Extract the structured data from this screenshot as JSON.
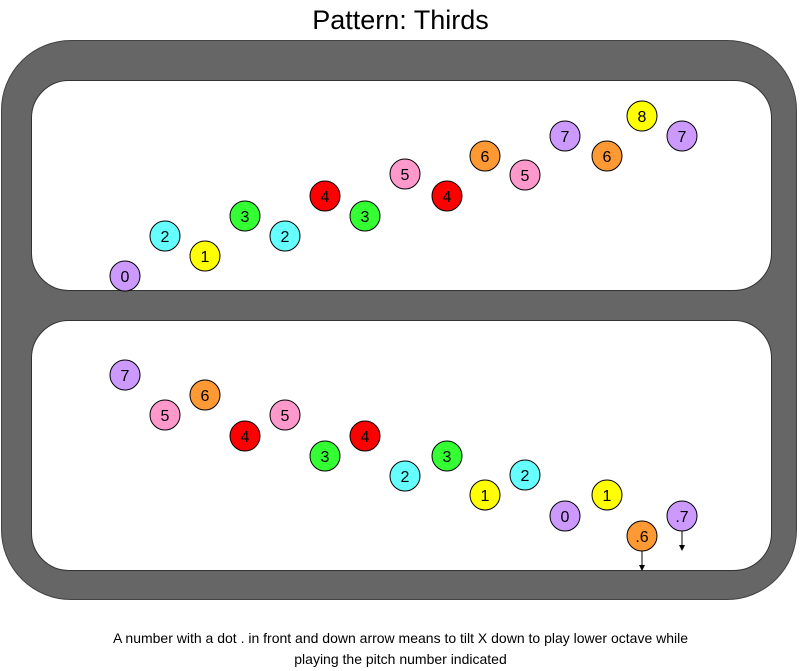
{
  "title": "Pattern: Thirds",
  "legend_text_line1": "A number with a dot . in front and down arrow means to tilt X down to play lower octave while",
  "legend_text_line2": "playing the pitch number indicated",
  "colors": {
    "purple": "#cc99ff",
    "cyan": "#66ffff",
    "yellow": "#ffff00",
    "green": "#33ff33",
    "red": "#ff0000",
    "pink": "#ff99cc",
    "orange": "#ff9933",
    "frame": "#666666",
    "panel": "#ffffff"
  },
  "ascending_notes": [
    {
      "label": "0",
      "color": "purple"
    },
    {
      "label": "2",
      "color": "cyan"
    },
    {
      "label": "1",
      "color": "yellow"
    },
    {
      "label": "3",
      "color": "green"
    },
    {
      "label": "2",
      "color": "cyan"
    },
    {
      "label": "4",
      "color": "red"
    },
    {
      "label": "3",
      "color": "green"
    },
    {
      "label": "5",
      "color": "pink"
    },
    {
      "label": "4",
      "color": "red"
    },
    {
      "label": "6",
      "color": "orange"
    },
    {
      "label": "5",
      "color": "pink"
    },
    {
      "label": "7",
      "color": "purple"
    },
    {
      "label": "6",
      "color": "orange"
    },
    {
      "label": "8",
      "color": "yellow"
    },
    {
      "label": "7",
      "color": "purple"
    }
  ],
  "descending_notes": [
    {
      "label": "7",
      "color": "purple"
    },
    {
      "label": "5",
      "color": "pink"
    },
    {
      "label": "6",
      "color": "orange"
    },
    {
      "label": "4",
      "color": "red"
    },
    {
      "label": "5",
      "color": "pink"
    },
    {
      "label": "3",
      "color": "green"
    },
    {
      "label": "4",
      "color": "red"
    },
    {
      "label": "2",
      "color": "cyan"
    },
    {
      "label": "3",
      "color": "green"
    },
    {
      "label": "1",
      "color": "yellow"
    },
    {
      "label": "2",
      "color": "cyan"
    },
    {
      "label": "0",
      "color": "purple"
    },
    {
      "label": "1",
      "color": "yellow"
    },
    {
      "label": ".6",
      "color": "orange",
      "arrow": "down"
    },
    {
      "label": ".7",
      "color": "purple",
      "arrow": "down"
    }
  ]
}
